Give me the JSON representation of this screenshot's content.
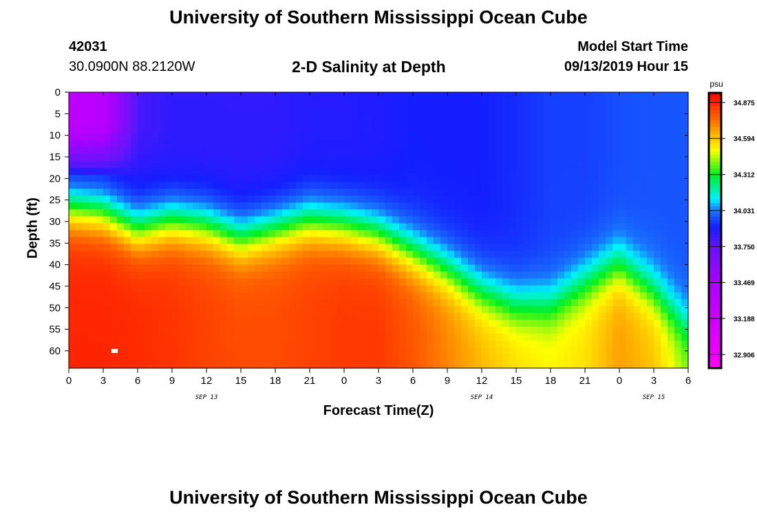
{
  "header": {
    "title": "University of Southern Mississippi Ocean Cube",
    "station": "42031",
    "coords": "30.0900N 88.2120W",
    "subtitle": "2-D Salinity at Depth",
    "model_start_label": "Model Start Time",
    "model_start": "09/13/2019 Hour 15",
    "footer_title": "University of Southern Mississippi Ocean Cube"
  },
  "chart_data": {
    "type": "heatmap",
    "title": "2-D Salinity at Depth",
    "xlabel": "Forecast Time(Z)",
    "ylabel": "Depth (ft)",
    "xlim": [
      0,
      54
    ],
    "ylim": [
      64,
      0
    ],
    "x_tick_labels": [
      "0",
      "3",
      "6",
      "9",
      "12",
      "15",
      "18",
      "21",
      "0",
      "3",
      "6",
      "9",
      "12",
      "15",
      "18",
      "21",
      "0",
      "3",
      "6"
    ],
    "y_ticks": [
      0,
      5,
      10,
      15,
      20,
      25,
      30,
      35,
      40,
      45,
      50,
      55,
      60
    ],
    "date_labels": [
      {
        "hour": 12,
        "label": "SEP 13"
      },
      {
        "hour": 36,
        "label": "SEP 14"
      },
      {
        "hour": 51,
        "label": "SEP 15"
      }
    ],
    "times": [
      0,
      3,
      6,
      9,
      12,
      15,
      18,
      21,
      24,
      27,
      30,
      33,
      36,
      39,
      42,
      45,
      48,
      51,
      54
    ],
    "interface_depth_ft": [
      27,
      28,
      32,
      30,
      31,
      34,
      32,
      30,
      31,
      33,
      37,
      41,
      46,
      49,
      49,
      44,
      40,
      46,
      54
    ],
    "surface_salinity": [
      33.3,
      33.35,
      33.8,
      33.85,
      33.85,
      33.85,
      33.85,
      33.87,
      33.87,
      33.88,
      33.9,
      33.9,
      33.9,
      33.92,
      33.95,
      33.95,
      33.97,
      33.98,
      33.98
    ],
    "bottom_salinity": [
      34.88,
      34.88,
      34.87,
      34.85,
      34.82,
      34.8,
      34.8,
      34.82,
      34.84,
      34.84,
      34.78,
      34.7,
      34.62,
      34.56,
      34.52,
      34.55,
      34.66,
      34.6,
      34.42
    ],
    "colorbar": {
      "unit": "psu",
      "ticks": [
        "34.875",
        "34.594",
        "34.312",
        "34.031",
        "33.750",
        "33.469",
        "33.188",
        "32.906"
      ],
      "range": [
        32.8,
        34.95
      ]
    }
  }
}
